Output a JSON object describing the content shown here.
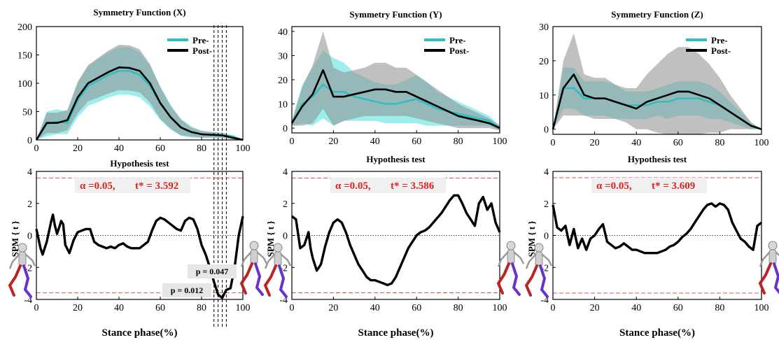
{
  "colors": {
    "pre": "#2bbfbf",
    "pre_band": "#7fe8e8",
    "post": "#000000",
    "post_band": "#8c8c8c",
    "critical_line": "#d9534f",
    "critical_text": "#e0241c"
  },
  "chart_data": [
    {
      "type": "area",
      "title": "Symmetry Function (X)",
      "xlim": [
        0,
        100
      ],
      "ylim": [
        0,
        200
      ],
      "xticks": [
        "0",
        "20",
        "40",
        "60",
        "80",
        "100"
      ],
      "yticks": [
        "0",
        "50",
        "100",
        "150",
        "200"
      ],
      "legend": {
        "placement": "top-right",
        "entries": [
          "Pre-",
          "Post-"
        ]
      },
      "x": [
        0,
        5,
        10,
        15,
        20,
        25,
        30,
        35,
        40,
        45,
        50,
        55,
        60,
        65,
        70,
        75,
        80,
        85,
        90,
        95,
        100
      ],
      "series": [
        {
          "name": "Pre-",
          "mean": [
            0,
            28,
            32,
            30,
            70,
            95,
            105,
            115,
            122,
            122,
            115,
            95,
            65,
            40,
            22,
            14,
            10,
            9,
            8,
            6,
            0
          ],
          "sd": [
            0,
            22,
            22,
            20,
            30,
            35,
            38,
            40,
            42,
            42,
            40,
            36,
            30,
            22,
            15,
            10,
            6,
            5,
            5,
            3,
            0
          ]
        },
        {
          "name": "Post-",
          "mean": [
            0,
            30,
            30,
            35,
            75,
            100,
            110,
            120,
            128,
            127,
            122,
            100,
            65,
            40,
            22,
            14,
            10,
            9,
            8,
            4,
            0
          ],
          "sd": [
            0,
            18,
            18,
            18,
            28,
            32,
            35,
            38,
            40,
            40,
            38,
            34,
            28,
            20,
            14,
            8,
            6,
            5,
            4,
            3,
            0
          ]
        }
      ],
      "significance_markers": [
        86,
        88,
        90,
        92
      ]
    },
    {
      "type": "area",
      "title": "Symmetry Function (Y)",
      "xlim": [
        0,
        100
      ],
      "ylim": [
        -2,
        42
      ],
      "xticks": [
        "0",
        "20",
        "40",
        "60",
        "80",
        "100"
      ],
      "yticks": [
        "0",
        "10",
        "20",
        "30",
        "40"
      ],
      "legend": {
        "placement": "top-right",
        "entries": [
          "Pre-",
          "Post-"
        ]
      },
      "x": [
        0,
        5,
        10,
        15,
        20,
        25,
        30,
        35,
        40,
        45,
        50,
        55,
        60,
        65,
        70,
        75,
        80,
        85,
        90,
        95,
        100
      ],
      "series": [
        {
          "name": "Pre-",
          "mean": [
            2,
            10,
            13,
            18,
            15,
            15,
            13,
            12,
            11,
            10,
            10,
            11,
            12,
            10,
            8,
            7,
            6,
            5,
            4,
            3,
            0
          ],
          "sd": [
            1,
            8,
            12,
            14,
            14,
            12,
            10,
            9,
            8,
            8,
            8,
            9,
            10,
            9,
            7,
            6,
            5,
            4,
            3,
            2,
            1
          ]
        },
        {
          "name": "Post-",
          "mean": [
            2,
            9,
            14,
            24,
            13,
            13,
            14,
            15,
            16,
            16,
            15,
            15,
            13,
            11,
            9,
            7,
            5,
            4,
            3,
            2,
            0
          ],
          "sd": [
            1,
            8,
            12,
            16,
            12,
            10,
            10,
            10,
            11,
            11,
            10,
            10,
            9,
            8,
            7,
            6,
            5,
            4,
            3,
            2,
            1
          ]
        }
      ]
    },
    {
      "type": "area",
      "title": "Symmetry Function (Z)",
      "xlim": [
        0,
        100
      ],
      "ylim": [
        -1.5,
        30
      ],
      "xticks": [
        "0",
        "20",
        "40",
        "60",
        "80",
        "100"
      ],
      "yticks": [
        "0",
        "10",
        "20",
        "30"
      ],
      "legend": {
        "placement": "top-right",
        "entries": [
          "Pre-",
          "Post-"
        ]
      },
      "x": [
        0,
        5,
        10,
        15,
        20,
        25,
        30,
        35,
        40,
        45,
        50,
        55,
        60,
        65,
        70,
        75,
        80,
        85,
        90,
        95,
        100
      ],
      "series": [
        {
          "name": "Pre-",
          "mean": [
            0,
            12,
            12,
            9,
            9,
            9,
            8,
            7,
            7,
            7,
            8,
            8,
            9,
            9,
            9,
            8,
            7,
            5,
            3,
            1,
            0
          ],
          "sd": [
            0,
            6,
            6,
            5,
            5,
            5,
            5,
            4,
            4,
            4,
            4,
            5,
            5,
            5,
            5,
            5,
            4,
            3,
            2,
            1,
            0
          ]
        },
        {
          "name": "Post-",
          "mean": [
            0,
            12,
            16,
            10,
            9,
            9,
            8,
            7,
            6,
            8,
            9,
            10,
            11,
            11,
            10,
            9,
            7,
            5,
            3,
            1,
            0
          ],
          "sd": [
            0,
            8,
            12,
            6,
            6,
            6,
            5,
            5,
            6,
            8,
            10,
            12,
            13,
            13,
            12,
            10,
            8,
            5,
            3,
            1,
            0
          ]
        }
      ]
    },
    {
      "type": "line",
      "title": "Hypothesis test",
      "xlabel": "Stance phase(%)",
      "ylabel": "SPM { t }",
      "xlim": [
        0,
        100
      ],
      "ylim": [
        -4,
        4
      ],
      "xticks": [
        "0",
        "20",
        "40",
        "60",
        "80",
        "100"
      ],
      "yticks": [
        "4",
        "2",
        "0",
        "-2",
        "-4"
      ],
      "alpha_label": "α  =0.05,",
      "tstar_label": "t* = 3.592",
      "threshold": 3.592,
      "x": [
        0,
        2,
        3,
        5,
        7,
        8,
        9,
        10,
        11,
        12,
        13,
        14,
        16,
        18,
        20,
        22,
        24,
        26,
        28,
        30,
        32,
        34,
        36,
        38,
        40,
        42,
        44,
        46,
        48,
        50,
        52,
        54,
        56,
        58,
        60,
        62,
        64,
        66,
        68,
        70,
        72,
        74,
        76,
        78,
        80,
        82,
        84,
        86,
        88,
        90,
        92,
        94,
        96,
        98,
        100
      ],
      "y": [
        0.4,
        -0.8,
        -1.2,
        -0.4,
        0.8,
        1.3,
        0.6,
        0.1,
        0.5,
        0.9,
        0.7,
        -0.6,
        -1.1,
        -0.3,
        0.2,
        0.3,
        0.4,
        0.4,
        -0.4,
        -0.6,
        -0.7,
        -0.8,
        -0.7,
        -0.8,
        -0.6,
        -0.5,
        -0.7,
        -0.8,
        -0.8,
        -0.8,
        -0.6,
        -0.4,
        0.3,
        0.9,
        1.1,
        1.0,
        0.8,
        0.6,
        0.4,
        0.3,
        0.9,
        1.1,
        1.0,
        0.4,
        -0.6,
        -1.2,
        -2.0,
        -2.9,
        -3.7,
        -3.9,
        -3.4,
        -3.3,
        -2.0,
        0.0,
        1.2
      ],
      "annotations": [
        "p = 0.047",
        "p = 0.012"
      ]
    },
    {
      "type": "line",
      "title": "Hypothesis test",
      "xlabel": "Stance phase(%)",
      "ylabel": "SPM { t }",
      "xlim": [
        0,
        100
      ],
      "ylim": [
        -4,
        4
      ],
      "xticks": [
        "0",
        "20",
        "40",
        "60",
        "80",
        "100"
      ],
      "yticks": [
        "4",
        "2",
        "0",
        "-2",
        "-4"
      ],
      "alpha_label": "α  =0.05,",
      "tstar_label": "t* = 3.586",
      "threshold": 3.586,
      "x": [
        0,
        2,
        4,
        6,
        8,
        9,
        10,
        12,
        13,
        14,
        16,
        18,
        20,
        22,
        24,
        26,
        28,
        30,
        32,
        34,
        36,
        38,
        40,
        42,
        44,
        46,
        48,
        50,
        52,
        54,
        56,
        58,
        60,
        62,
        64,
        66,
        68,
        70,
        72,
        74,
        76,
        78,
        80,
        82,
        84,
        86,
        88,
        90,
        92,
        94,
        96,
        98,
        100
      ],
      "y": [
        1.2,
        1.0,
        -0.8,
        -0.6,
        0.2,
        -0.8,
        -1.4,
        -2.2,
        -2.0,
        -1.8,
        -0.7,
        0.2,
        0.8,
        1.0,
        0.8,
        0.2,
        -0.6,
        -1.2,
        -1.8,
        -2.2,
        -2.6,
        -2.8,
        -2.8,
        -2.9,
        -3.0,
        -3.1,
        -3.0,
        -2.6,
        -2.0,
        -1.4,
        -0.8,
        -0.4,
        0.0,
        0.2,
        0.3,
        0.5,
        0.8,
        1.1,
        1.4,
        1.8,
        2.2,
        2.5,
        2.5,
        2.0,
        1.4,
        1.0,
        0.6,
        2.0,
        2.4,
        1.6,
        2.0,
        0.8,
        0.2
      ]
    },
    {
      "type": "line",
      "title": "Hypothesis test",
      "xlabel": "Stance phase(%)",
      "ylabel": "SPM { t }",
      "xlim": [
        0,
        100
      ],
      "ylim": [
        -4,
        4
      ],
      "xticks": [
        "0",
        "20",
        "40",
        "60",
        "80",
        "100"
      ],
      "yticks": [
        "4",
        "2",
        "0",
        "-2",
        "-4"
      ],
      "alpha_label": "α  =0.05,",
      "tstar_label": "t* = 3.609",
      "threshold": 3.609,
      "x": [
        0,
        2,
        4,
        6,
        8,
        10,
        12,
        14,
        16,
        18,
        20,
        22,
        24,
        26,
        28,
        30,
        32,
        34,
        36,
        38,
        40,
        42,
        44,
        46,
        48,
        50,
        52,
        54,
        56,
        58,
        60,
        62,
        64,
        66,
        68,
        70,
        72,
        74,
        76,
        78,
        80,
        82,
        84,
        86,
        88,
        90,
        92,
        94,
        96,
        98,
        100
      ],
      "y": [
        1.9,
        0.5,
        0.3,
        0.6,
        -0.6,
        0.4,
        -0.8,
        -0.2,
        -0.9,
        -0.2,
        0.0,
        0.4,
        0.7,
        -0.4,
        -0.6,
        -0.8,
        -0.7,
        -0.5,
        -0.7,
        -0.9,
        -0.9,
        -1.0,
        -1.1,
        -1.1,
        -1.1,
        -1.1,
        -1.0,
        -0.9,
        -0.7,
        -0.6,
        -0.4,
        -0.1,
        0.1,
        0.4,
        0.8,
        1.2,
        1.6,
        1.9,
        2.0,
        1.8,
        2.0,
        1.9,
        1.6,
        0.8,
        0.3,
        -0.2,
        -0.4,
        -0.7,
        -0.9,
        0.6,
        0.8
      ]
    }
  ]
}
